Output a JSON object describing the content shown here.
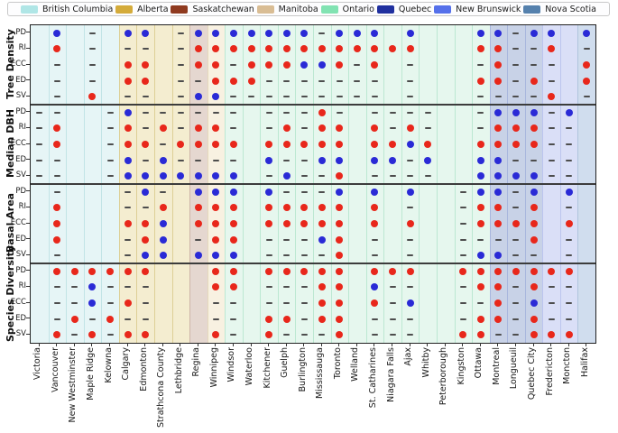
{
  "legend": {
    "items": [
      {
        "label": "British Columbia",
        "color": "#b0e6e6"
      },
      {
        "label": "Alberta",
        "color": "#d4ab3a"
      },
      {
        "label": "Saskatchewan",
        "color": "#8f3a1f"
      },
      {
        "label": "Manitoba",
        "color": "#d9bd94"
      },
      {
        "label": "Ontario",
        "color": "#82e3b2"
      },
      {
        "label": "Quebec",
        "color": "#20309f"
      },
      {
        "label": "New Brunswick",
        "color": "#5570ea"
      },
      {
        "label": "Nova Scotia",
        "color": "#5581ad"
      }
    ]
  },
  "chart_data": {
    "type": "dot-matrix",
    "x_categories": [
      "Victoria",
      "Vancouver",
      "New Westminster",
      "Maple Ridge",
      "Kelowna",
      "Calgary",
      "Edmonton",
      "Strathcona County",
      "Lethbridge",
      "Regina",
      "Winnipeg",
      "Windsor",
      "Waterloo",
      "Kitchener",
      "Guelph",
      "Burlington",
      "Mississauga",
      "Toronto",
      "Welland",
      "St. Catharines",
      "Niagara Falls",
      "Ajax",
      "Whitby",
      "Peterborough",
      "Kingston",
      "Ottawa",
      "Montreal",
      "Longueuil",
      "Quebec City",
      "Fredericton",
      "Moncton",
      "Halifax"
    ],
    "row_groups": [
      "Tree Density",
      "Median DBH",
      "Basal Area",
      "Species Diversity"
    ],
    "row_labels": [
      "PD",
      "RI",
      "ECC",
      "ED",
      "SV"
    ],
    "provinces": [
      {
        "name": "British Columbia",
        "col_start": 0,
        "col_count": 5,
        "band": "#e6f5f6",
        "grid": "#c2e4e6"
      },
      {
        "name": "Alberta",
        "col_start": 5,
        "col_count": 4,
        "band": "#f4edd0",
        "grid": "#ddcf96"
      },
      {
        "name": "Saskatchewan",
        "col_start": 9,
        "col_count": 1,
        "band": "#e5d7d0",
        "grid": "#cdb4a8"
      },
      {
        "name": "Manitoba",
        "col_start": 10,
        "col_count": 1,
        "band": "#f8f1e1",
        "grid": "#e6d9bc"
      },
      {
        "name": "Ontario",
        "col_start": 11,
        "col_count": 15,
        "band": "#e6f7ee",
        "grid": "#bce8d2"
      },
      {
        "name": "Quebec",
        "col_start": 26,
        "col_count": 3,
        "band": "#c8d2e7",
        "grid": "#a8b6dd"
      },
      {
        "name": "New Brunswick",
        "col_start": 29,
        "col_count": 2,
        "band": "#dadff7",
        "grid": "#bcc5ee"
      },
      {
        "name": "Nova Scotia",
        "col_start": 31,
        "col_count": 1,
        "band": "#d0ddee",
        "grid": "#b0c5dd"
      }
    ],
    "marker_colors": {
      "R": "#e8271b",
      "B": "#2a2ad6",
      "dash": "#4d4d4d"
    },
    "cells": {
      "Tree Density": {
        "PD": [
          "",
          "B",
          "",
          "-",
          "",
          "B",
          "B",
          "",
          "-",
          "B",
          "B",
          "B",
          "B",
          "B",
          "B",
          "B",
          "-",
          "B",
          "B",
          "B",
          "",
          "B",
          "",
          "",
          "",
          "B",
          "B",
          "-",
          "B",
          "B",
          "",
          "B"
        ],
        "RI": [
          "",
          "R",
          "",
          "-",
          "",
          "-",
          "-",
          "",
          "-",
          "R",
          "R",
          "R",
          "R",
          "R",
          "R",
          "R",
          "R",
          "R",
          "R",
          "R",
          "R",
          "R",
          "",
          "",
          "",
          "R",
          "R",
          "-",
          "-",
          "R",
          "",
          "-"
        ],
        "ECC": [
          "",
          "-",
          "",
          "-",
          "",
          "R",
          "R",
          "",
          "-",
          "R",
          "R",
          "-",
          "R",
          "R",
          "R",
          "B",
          "B",
          "R",
          "-",
          "R",
          "",
          "-",
          "",
          "",
          "",
          "-",
          "R",
          "-",
          "-",
          "-",
          "",
          "R"
        ],
        "ED": [
          "",
          "-",
          "",
          "-",
          "",
          "R",
          "R",
          "",
          "-",
          "-",
          "R",
          "R",
          "R",
          "-",
          "-",
          "-",
          "-",
          "-",
          "-",
          "-",
          "",
          "-",
          "",
          "",
          "",
          "R",
          "R",
          "-",
          "R",
          "-",
          "",
          "R"
        ],
        "SV": [
          "",
          "-",
          "",
          "R",
          "",
          "-",
          "-",
          "",
          "-",
          "B",
          "B",
          "-",
          "-",
          "-",
          "-",
          "-",
          "-",
          "-",
          "-",
          "-",
          "",
          "-",
          "",
          "",
          "",
          "-",
          "-",
          "-",
          "-",
          "R",
          "",
          "-"
        ]
      },
      "Median DBH": {
        "PD": [
          "-",
          "-",
          "",
          "",
          "-",
          "B",
          "-",
          "-",
          "-",
          "-",
          "-",
          "-",
          "",
          "-",
          "-",
          "-",
          "R",
          "-",
          "",
          "-",
          "-",
          "-",
          "-",
          "",
          "",
          "-",
          "B",
          "B",
          "B",
          "-",
          "B",
          ""
        ],
        "RI": [
          "-",
          "R",
          "",
          "",
          "-",
          "R",
          "-",
          "R",
          "-",
          "R",
          "R",
          "-",
          "",
          "-",
          "R",
          "-",
          "R",
          "R",
          "",
          "R",
          "-",
          "R",
          "-",
          "",
          "",
          "-",
          "R",
          "R",
          "R",
          "-",
          "-",
          ""
        ],
        "ECC": [
          "-",
          "R",
          "",
          "",
          "-",
          "R",
          "R",
          "-",
          "R",
          "R",
          "R",
          "R",
          "",
          "R",
          "R",
          "R",
          "R",
          "R",
          "",
          "R",
          "R",
          "B",
          "R",
          "",
          "",
          "R",
          "R",
          "R",
          "R",
          "-",
          "-",
          ""
        ],
        "ED": [
          "-",
          "-",
          "",
          "",
          "-",
          "B",
          "-",
          "B",
          "-",
          "-",
          "-",
          "-",
          "",
          "B",
          "-",
          "-",
          "B",
          "B",
          "",
          "B",
          "B",
          "-",
          "B",
          "",
          "",
          "B",
          "B",
          "-",
          "-",
          "-",
          "-",
          ""
        ],
        "SV": [
          "-",
          "-",
          "",
          "",
          "-",
          "B",
          "B",
          "B",
          "B",
          "B",
          "B",
          "B",
          "",
          "-",
          "B",
          "-",
          "-",
          "R",
          "",
          "-",
          "-",
          "-",
          "-",
          "",
          "",
          "B",
          "B",
          "B",
          "B",
          "-",
          "-",
          ""
        ]
      },
      "Basal Area": {
        "PD": [
          "",
          "-",
          "",
          "",
          "",
          "-",
          "B",
          "-",
          "",
          "B",
          "B",
          "B",
          "",
          "B",
          "-",
          "-",
          "-",
          "B",
          "",
          "B",
          "",
          "B",
          "",
          "",
          "-",
          "B",
          "B",
          "-",
          "B",
          "",
          "B",
          ""
        ],
        "RI": [
          "",
          "R",
          "",
          "",
          "",
          "-",
          "-",
          "R",
          "",
          "R",
          "R",
          "R",
          "",
          "R",
          "R",
          "R",
          "R",
          "R",
          "",
          "R",
          "",
          "-",
          "",
          "",
          "-",
          "R",
          "R",
          "-",
          "R",
          "",
          "-",
          ""
        ],
        "ECC": [
          "",
          "R",
          "",
          "",
          "",
          "R",
          "R",
          "B",
          "",
          "R",
          "R",
          "R",
          "",
          "R",
          "R",
          "R",
          "R",
          "R",
          "",
          "R",
          "",
          "R",
          "",
          "",
          "-",
          "R",
          "R",
          "R",
          "R",
          "",
          "R",
          ""
        ],
        "ED": [
          "",
          "R",
          "",
          "",
          "",
          "-",
          "R",
          "B",
          "",
          "-",
          "R",
          "R",
          "",
          "-",
          "-",
          "-",
          "B",
          "R",
          "",
          "-",
          "",
          "-",
          "",
          "",
          "-",
          "-",
          "-",
          "-",
          "R",
          "",
          "-",
          ""
        ],
        "SV": [
          "",
          "-",
          "",
          "",
          "",
          "-",
          "B",
          "B",
          "",
          "B",
          "B",
          "B",
          "",
          "-",
          "-",
          "-",
          "-",
          "R",
          "",
          "-",
          "",
          "-",
          "",
          "",
          "-",
          "B",
          "B",
          "-",
          "-",
          "",
          "-",
          ""
        ]
      },
      "Species Diversity": {
        "PD": [
          "",
          "R",
          "R",
          "R",
          "R",
          "R",
          "R",
          "",
          "",
          "",
          "R",
          "R",
          "",
          "R",
          "R",
          "R",
          "R",
          "R",
          "",
          "R",
          "R",
          "R",
          "",
          "",
          "R",
          "R",
          "R",
          "R",
          "R",
          "R",
          "R",
          ""
        ],
        "RI": [
          "",
          "-",
          "-",
          "B",
          "-",
          "-",
          "-",
          "",
          "",
          "",
          "R",
          "R",
          "",
          "-",
          "-",
          "-",
          "R",
          "R",
          "",
          "B",
          "-",
          "-",
          "",
          "",
          "-",
          "R",
          "R",
          "-",
          "R",
          "-",
          "-",
          ""
        ],
        "ECC": [
          "",
          "-",
          "-",
          "B",
          "-",
          "R",
          "-",
          "",
          "",
          "",
          "-",
          "-",
          "",
          "-",
          "-",
          "-",
          "R",
          "R",
          "",
          "R",
          "-",
          "B",
          "",
          "",
          "-",
          "-",
          "R",
          "-",
          "B",
          "-",
          "-",
          ""
        ],
        "ED": [
          "",
          "-",
          "R",
          "-",
          "R",
          "-",
          "-",
          "",
          "",
          "",
          "-",
          "-",
          "",
          "R",
          "R",
          "-",
          "R",
          "R",
          "",
          "-",
          "-",
          "-",
          "",
          "",
          "-",
          "R",
          "R",
          "-",
          "R",
          "-",
          "-",
          ""
        ],
        "SV": [
          "",
          "R",
          "-",
          "R",
          "-",
          "R",
          "R",
          "",
          "",
          "",
          "R",
          "-",
          "",
          "R",
          "-",
          "-",
          "-",
          "R",
          "",
          "-",
          "-",
          "-",
          "",
          "",
          "R",
          "R",
          "-",
          "-",
          "R",
          "R",
          "R",
          ""
        ]
      }
    }
  }
}
